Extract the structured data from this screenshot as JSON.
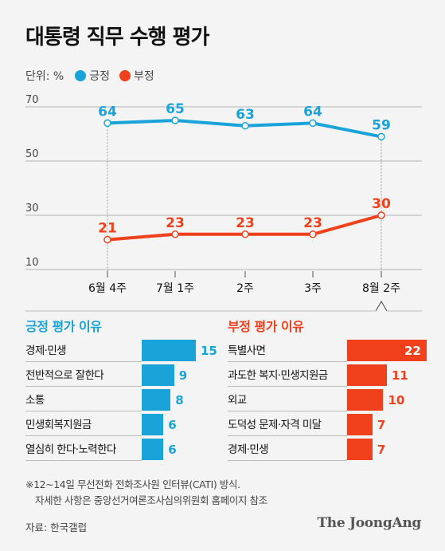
{
  "title": "대통령 직무 수행 평가",
  "legend": {
    "unit": "단위: %",
    "items": [
      {
        "label": "긍정",
        "color": "#1aa3d9"
      },
      {
        "label": "부정",
        "color": "#f0401c"
      }
    ]
  },
  "chart_data": {
    "type": "line",
    "x": [
      "6월 4주",
      "7월 1주",
      "2주",
      "3주",
      "8월 2주"
    ],
    "yticks": [
      70,
      50,
      30,
      10
    ],
    "ylim": [
      10,
      70
    ],
    "series": [
      {
        "name": "긍정",
        "color": "#1aa3d9",
        "values": [
          64,
          65,
          63,
          64,
          59
        ]
      },
      {
        "name": "부정",
        "color": "#f0401c",
        "values": [
          21,
          23,
          23,
          23,
          30
        ]
      }
    ]
  },
  "positive_reasons": {
    "title": "긍정 평가 이유",
    "color": "#1aa3d9",
    "items": [
      {
        "label": "경제·민생",
        "value": 15
      },
      {
        "label": "전반적으로 잘한다",
        "value": 9
      },
      {
        "label": "소통",
        "value": 8
      },
      {
        "label": "민생회복지원금",
        "value": 6
      },
      {
        "label": "열심히 한다·노력한다",
        "value": 6
      }
    ]
  },
  "negative_reasons": {
    "title": "부정 평가 이유",
    "color": "#f0401c",
    "items": [
      {
        "label": "특별사면",
        "value": 22
      },
      {
        "label": "과도한 복지·민생지원금",
        "value": 11
      },
      {
        "label": "외교",
        "value": 10
      },
      {
        "label": "도덕성 문제·자격 미달",
        "value": 7
      },
      {
        "label": "경제·민생",
        "value": 7
      }
    ]
  },
  "footnote": {
    "line1": "※12~14일 무선전화 전화조사원 인터뷰(CATI) 방식.",
    "line2": "자세한 사항은 중앙선거여론조사심의위원회 홈페이지 참조"
  },
  "source": "자료: 한국갤럽",
  "brand": "The JoongAng"
}
